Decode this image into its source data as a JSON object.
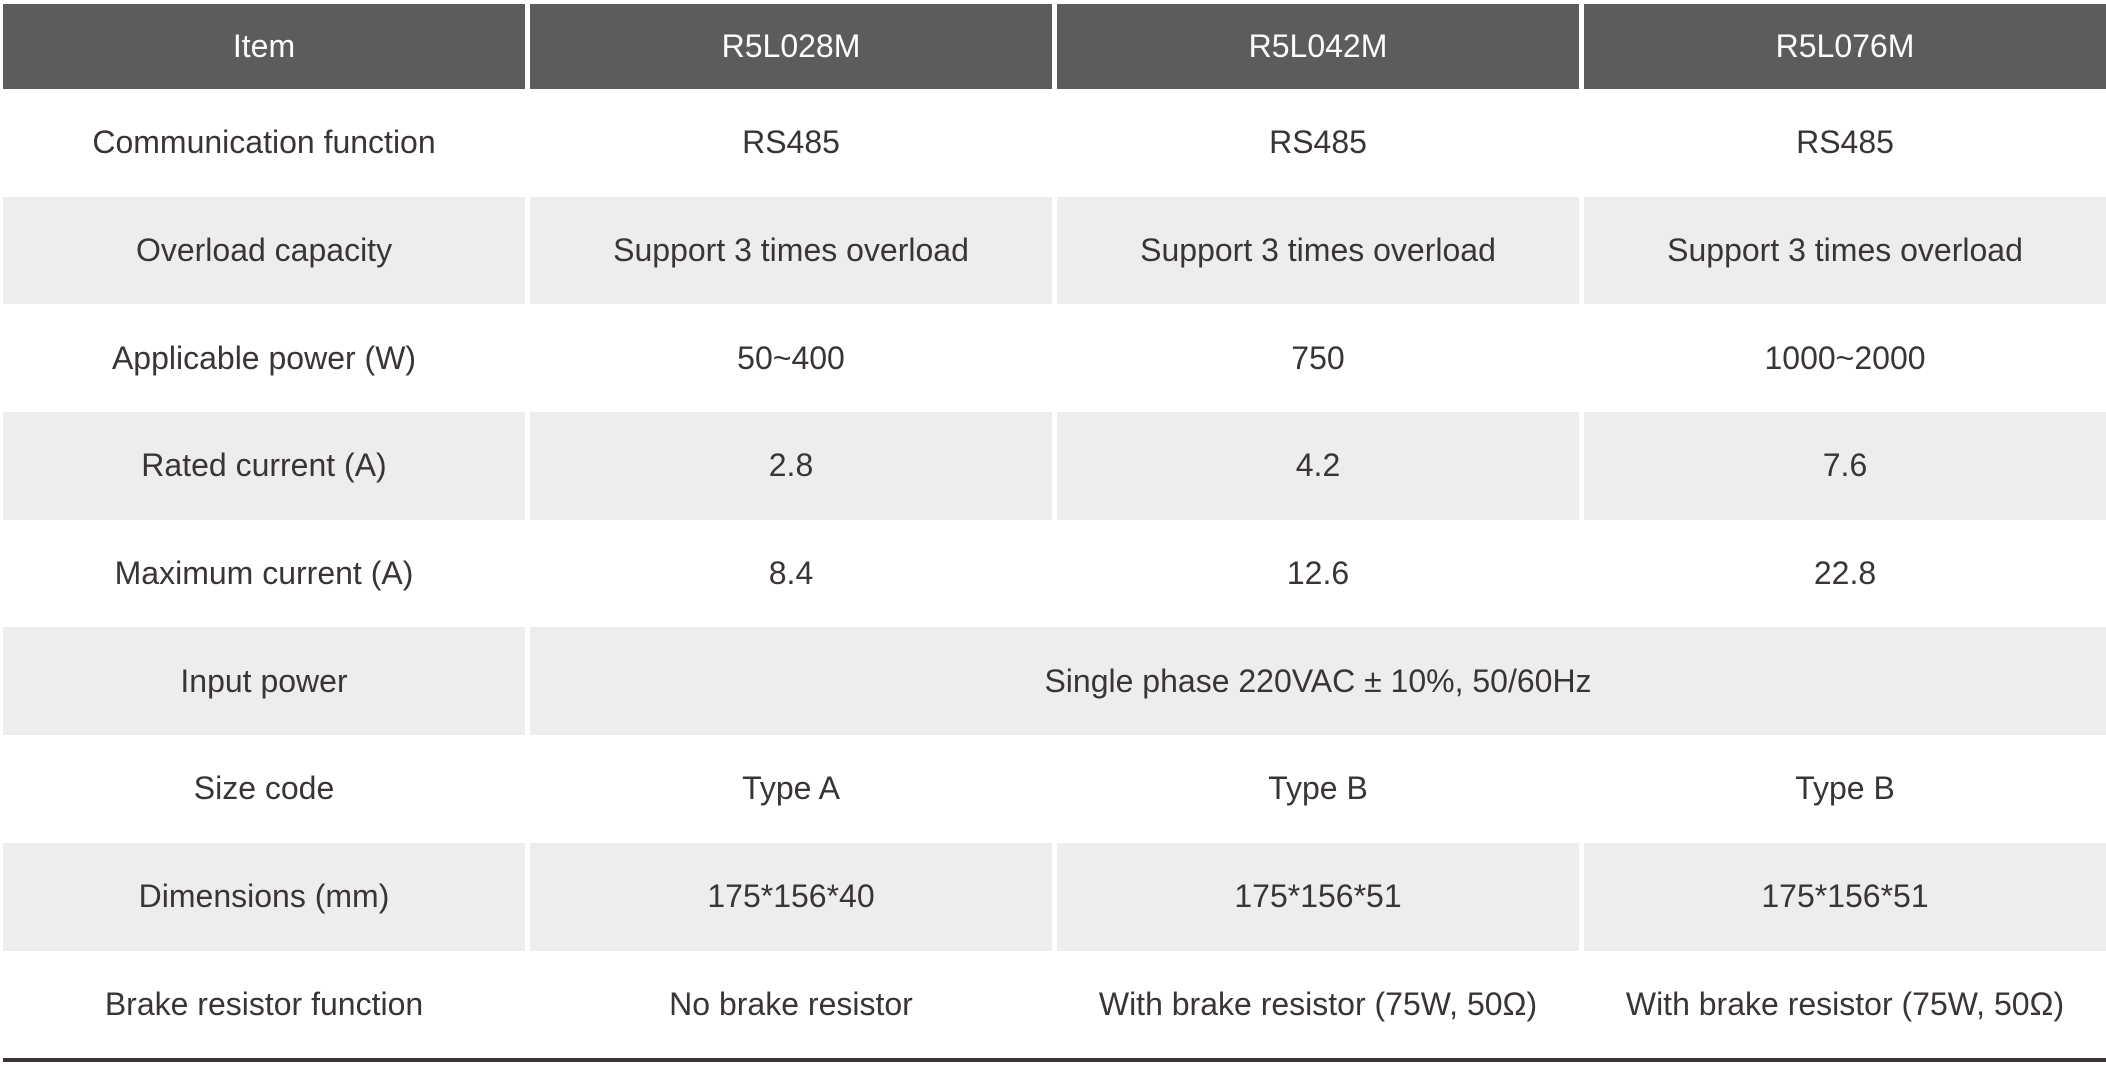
{
  "table": {
    "header": {
      "item": "Item",
      "models": [
        "R5L028M",
        "R5L042M",
        "R5L076M"
      ]
    },
    "rows": [
      {
        "label": "Communication function",
        "values": [
          "RS485",
          "RS485",
          "RS485"
        ]
      },
      {
        "label": "Overload capacity",
        "values": [
          "Support 3 times overload",
          "Support 3 times overload",
          "Support 3 times overload"
        ]
      },
      {
        "label": "Applicable power (W)",
        "values": [
          "50~400",
          "750",
          "1000~2000"
        ]
      },
      {
        "label": "Rated current (A)",
        "values": [
          "2.8",
          "4.2",
          "7.6"
        ]
      },
      {
        "label": "Maximum current (A)",
        "values": [
          "8.4",
          "12.6",
          "22.8"
        ]
      },
      {
        "label": "Input power",
        "merged": true,
        "values": [
          "Single phase 220VAC ± 10%, 50/60Hz"
        ]
      },
      {
        "label": "Size code",
        "values": [
          "Type A",
          "Type B",
          "Type B"
        ]
      },
      {
        "label": "Dimensions (mm)",
        "values": [
          "175*156*40",
          "175*156*51",
          "175*156*51"
        ]
      },
      {
        "label": "Brake resistor function",
        "values": [
          "No brake resistor",
          "With brake resistor (75W, 50Ω)",
          "With brake resistor (75W, 50Ω)"
        ]
      }
    ]
  },
  "colors": {
    "header_bg": "#5e5b5c",
    "header_text": "#fdfdfd",
    "row_alt_bg": "#eeedee",
    "text": "#3a3435",
    "bottom_rule": "#3a3435"
  }
}
